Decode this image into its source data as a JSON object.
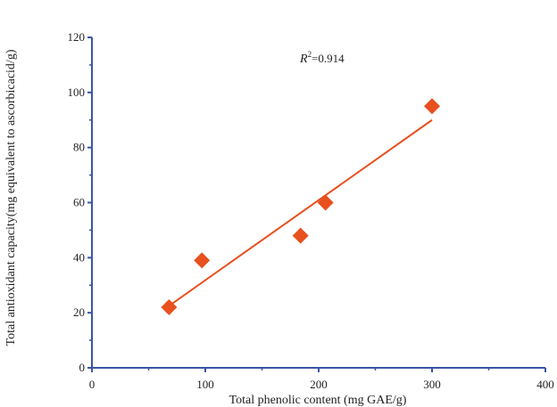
{
  "chart_data": {
    "type": "scatter",
    "title": "",
    "xlabel": "Total phenolic content (mg GAE/g)",
    "ylabel": "Total antioxidant capacity(mg equivalent to ascorbicacid/g)",
    "xlim": [
      0,
      400
    ],
    "ylim": [
      0,
      120
    ],
    "x_ticks": [
      0,
      100,
      200,
      300,
      400
    ],
    "y_ticks": [
      0,
      20,
      40,
      60,
      80,
      100,
      120
    ],
    "grid": false,
    "legend": "none",
    "series": [
      {
        "marker": "diamond",
        "color": "#e8501e",
        "points": [
          {
            "x": 68,
            "y": 22
          },
          {
            "x": 97,
            "y": 39
          },
          {
            "x": 184,
            "y": 48
          },
          {
            "x": 206,
            "y": 60
          },
          {
            "x": 300,
            "y": 95
          }
        ]
      }
    ],
    "trendline": {
      "type": "linear",
      "color": "#e8501e",
      "x_range": [
        68,
        300
      ],
      "y_range": [
        22.5,
        90
      ],
      "r2_label": "R",
      "r2_superscript": "2",
      "r2_value": "=0.914"
    },
    "axis_color": "#3a55a5"
  }
}
